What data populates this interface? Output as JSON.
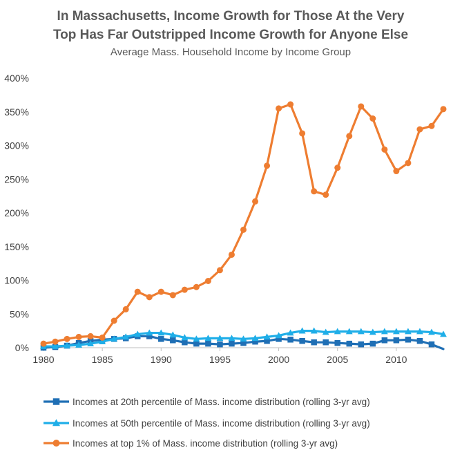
{
  "chart_data": {
    "type": "line",
    "title": "In Massachusetts, Income Growth for Those At the Very Top Has Far Outstripped Income Growth for Anyone Else",
    "title_lines": [
      "In Massachusetts, Income Growth for Those At the Very",
      "Top Has Far Outstripped Income Growth for Anyone Else"
    ],
    "subtitle": "Average Mass. Household Income by Income Group",
    "xlabel": "",
    "ylabel": "",
    "xlim": [
      1980,
      2014
    ],
    "ylim": [
      0,
      400
    ],
    "x_ticks": [
      1980,
      1985,
      1990,
      1995,
      2000,
      2005,
      2010
    ],
    "y_ticks": [
      0,
      50,
      100,
      150,
      200,
      250,
      300,
      350,
      400
    ],
    "y_tick_labels": [
      "0%",
      "50%",
      "100%",
      "150%",
      "200%",
      "250%",
      "300%",
      "350%",
      "400%"
    ],
    "grid": false,
    "legend_position": "bottom",
    "x": [
      1980,
      1981,
      1982,
      1983,
      1984,
      1985,
      1986,
      1987,
      1988,
      1989,
      1990,
      1991,
      1992,
      1993,
      1994,
      1995,
      1996,
      1997,
      1998,
      1999,
      2000,
      2001,
      2002,
      2003,
      2004,
      2005,
      2006,
      2007,
      2008,
      2009,
      2010,
      2011,
      2012,
      2013,
      2014
    ],
    "series": [
      {
        "name": "Incomes at 20th percentile of Mass. income distribution (rolling 3-yr avg)",
        "color": "#1f6fb5",
        "marker": "square",
        "values": [
          0,
          1,
          3,
          7,
          10,
          12,
          13,
          14,
          17,
          17,
          13,
          11,
          8,
          6,
          6,
          5,
          6,
          7,
          9,
          10,
          13,
          12,
          10,
          8,
          8,
          7,
          6,
          5,
          6,
          11,
          11,
          12,
          10,
          5,
          -2
        ]
      },
      {
        "name": "Incomes at 50th percentile of Mass. income distribution (rolling 3-yr avg)",
        "color": "#1faee8",
        "marker": "triangle",
        "values": [
          2,
          2,
          3,
          4,
          6,
          9,
          13,
          16,
          20,
          22,
          22,
          19,
          15,
          13,
          14,
          14,
          14,
          13,
          14,
          16,
          18,
          22,
          25,
          25,
          23,
          24,
          24,
          24,
          23,
          24,
          24,
          24,
          24,
          23,
          20
        ]
      },
      {
        "name": "Incomes at top 1% of Mass. income distribution (rolling 3-yr avg)",
        "color": "#ee7d31",
        "marker": "circle",
        "values": [
          6,
          9,
          13,
          16,
          17,
          15,
          40,
          57,
          83,
          75,
          83,
          78,
          86,
          90,
          99,
          115,
          138,
          175,
          217,
          270,
          355,
          361,
          318,
          232,
          227,
          267,
          314,
          358,
          340,
          294,
          262,
          274,
          324,
          329,
          354
        ]
      }
    ]
  }
}
